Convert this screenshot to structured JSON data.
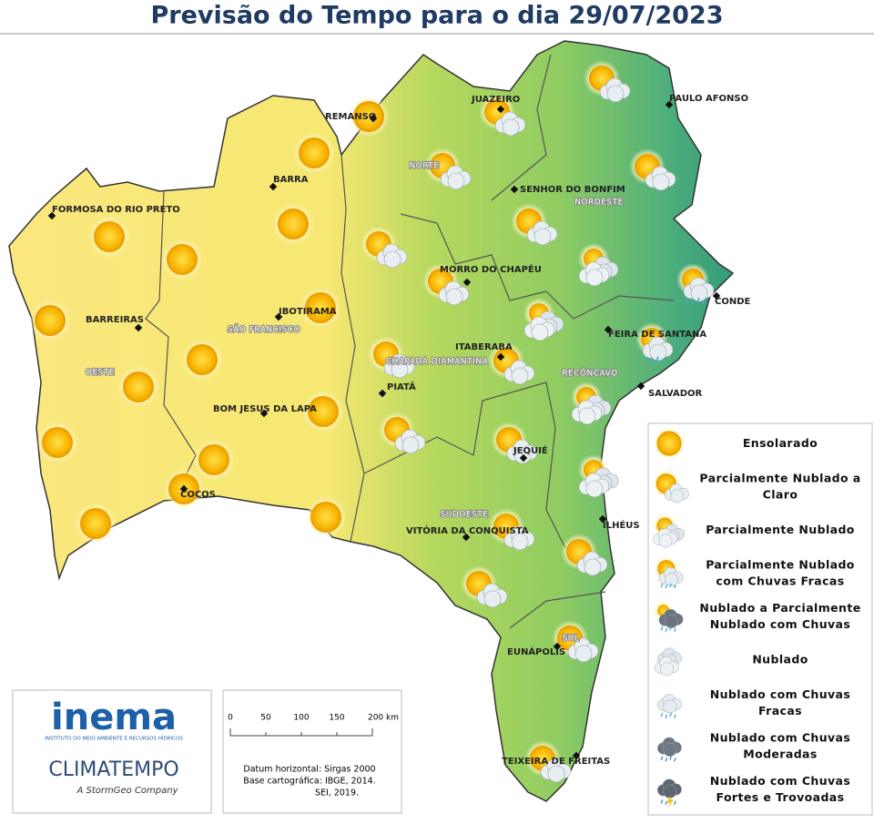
{
  "title": "Previsão do Tempo para o dia 29/07/2023",
  "cities": [
    "JUAZEIRO",
    "PAULO AFONSO",
    "REMANSO",
    "BARRA",
    "SENHOR DO BONFIM",
    "FORMOSA DO RIO PRETO",
    "MORRO DO CHAPÉU",
    "CONDE",
    "BARREIRAS",
    "IBOTIRAMA",
    "FEIRA DE SANTANA",
    "ITABERABA",
    "SALVADOR",
    "PIATÃ",
    "BOM JESUS DA LAPA",
    "JEQUIÉ",
    "COCOS",
    "VITÓRIA DA CONQUISTA",
    "ILHÉUS",
    "EUNÁPOLIS",
    "TEIXEIRA DE FREITAS"
  ],
  "regions": [
    "NORTE",
    "NORDESTE",
    "SÃO FRANCISCO",
    "OESTE",
    "CHAPADA DIAMANTINA",
    "RECÔNCAVO",
    "SUDOESTE",
    "SUL"
  ],
  "legend": [
    "Ensolarado",
    "Parcialmente Nublado a Claro",
    "Parcialmente Nublado",
    "Parcialmente Nublado com Chuvas Fracas",
    "Nublado a Parcialmente Nublado com Chuvas",
    "Nublado",
    "Nublado com Chuvas Fracas",
    "Nublado com Chuvas Moderadas",
    "Nublado com Chuvas Fortes e Trovoadas"
  ],
  "logo": {
    "inema": "inema",
    "inema_sub": "INSTITUTO DO MEIO AMBIENTE E RECURSOS HÍDRICOS",
    "climatempo": "CLIMATEMPO",
    "climatempo_sub": "A StormGeo Company"
  },
  "scale": {
    "labels": [
      "0",
      "50",
      "100",
      "150",
      "200 km"
    ],
    "notes": [
      "Datum horizontal: Sirgas 2000",
      "Base cartográfica: IBGE, 2014.",
      "SEI, 2019."
    ]
  }
}
